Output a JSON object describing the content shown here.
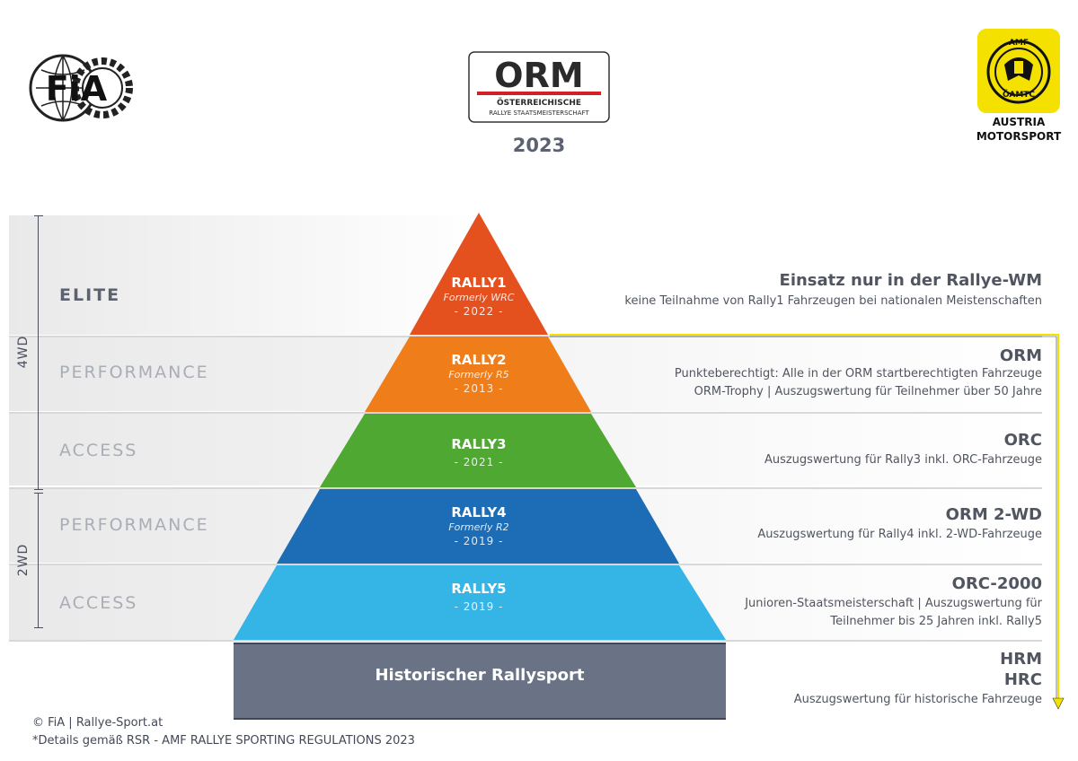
{
  "header": {
    "fia_logo_text": "FiA",
    "orm_logo": {
      "title": "ORM",
      "subtitle_line1": "ÖSTERREICHISCHE",
      "subtitle_line2": "RALLYE STAATSMEISTERSCHAFT"
    },
    "year": "2023",
    "amf_logo": {
      "top_text": "AMF",
      "badge_text": "ÖAMTC",
      "caption_line1": "AUSTRIA",
      "caption_line2": "MOTORSPORT"
    }
  },
  "groups": [
    {
      "label": "4WD"
    },
    {
      "label": "2WD"
    }
  ],
  "tiers": [
    {
      "level": "ELITE",
      "name": "RALLY1",
      "formerly": "Formerly WRC",
      "year": "- 2022 -",
      "color": "#e5501f"
    },
    {
      "level": "PERFORMANCE",
      "name": "RALLY2",
      "formerly": "Formerly R5",
      "year": "- 2013 -",
      "color": "#ef7d1a"
    },
    {
      "level": "ACCESS",
      "name": "RALLY3",
      "formerly": "",
      "year": "- 2021 -",
      "color": "#4ea832"
    },
    {
      "level": "PERFORMANCE",
      "name": "RALLY4",
      "formerly": "Formerly R2",
      "year": "- 2019 -",
      "color": "#1c6db6"
    },
    {
      "level": "ACCESS",
      "name": "RALLY5",
      "formerly": "",
      "year": "- 2019 -",
      "color": "#35b4e6"
    }
  ],
  "descriptions": [
    {
      "head": "Einsatz nur in der Rallye-WM",
      "lines": [
        "keine Teilnahme von Rally1 Fahrzeugen bei nationalen Meistenschaften"
      ]
    },
    {
      "head": "ORM",
      "lines": [
        "Punkteberechtigt: Alle in der ORM startberechtigten Fahrzeuge",
        "ORM-Trophy | Auszugswertung für Teilnehmer über 50 Jahre"
      ]
    },
    {
      "head": "ORC",
      "lines": [
        "Auszugswertung für Rally3 inkl. ORC-Fahrzeuge"
      ]
    },
    {
      "head": "ORM 2-WD",
      "lines": [
        "Auszugswertung für Rally4 inkl. 2-WD-Fahrzeuge"
      ]
    },
    {
      "head": "ORC-2000",
      "lines": [
        "Junioren-Staatsmeisterschaft | Auszugswertung für",
        "Teilnehmer bis 25 Jahren inkl. Rally5"
      ]
    },
    {
      "head": "HRM",
      "head2": "HRC",
      "lines": [
        "Auszugswertung für historische Fahrzeuge"
      ]
    }
  ],
  "historic": {
    "label": "Historischer Rallysport",
    "color": "#6a7386"
  },
  "footer": {
    "credit": "© FiA | Rallye-Sport.at",
    "note": "*Details gemäß  RSR - AMF RALLYE SPORTING REGULATIONS 2023"
  },
  "colors": {
    "accent_yellow": "#f5e100",
    "text_gray": "#505560"
  }
}
